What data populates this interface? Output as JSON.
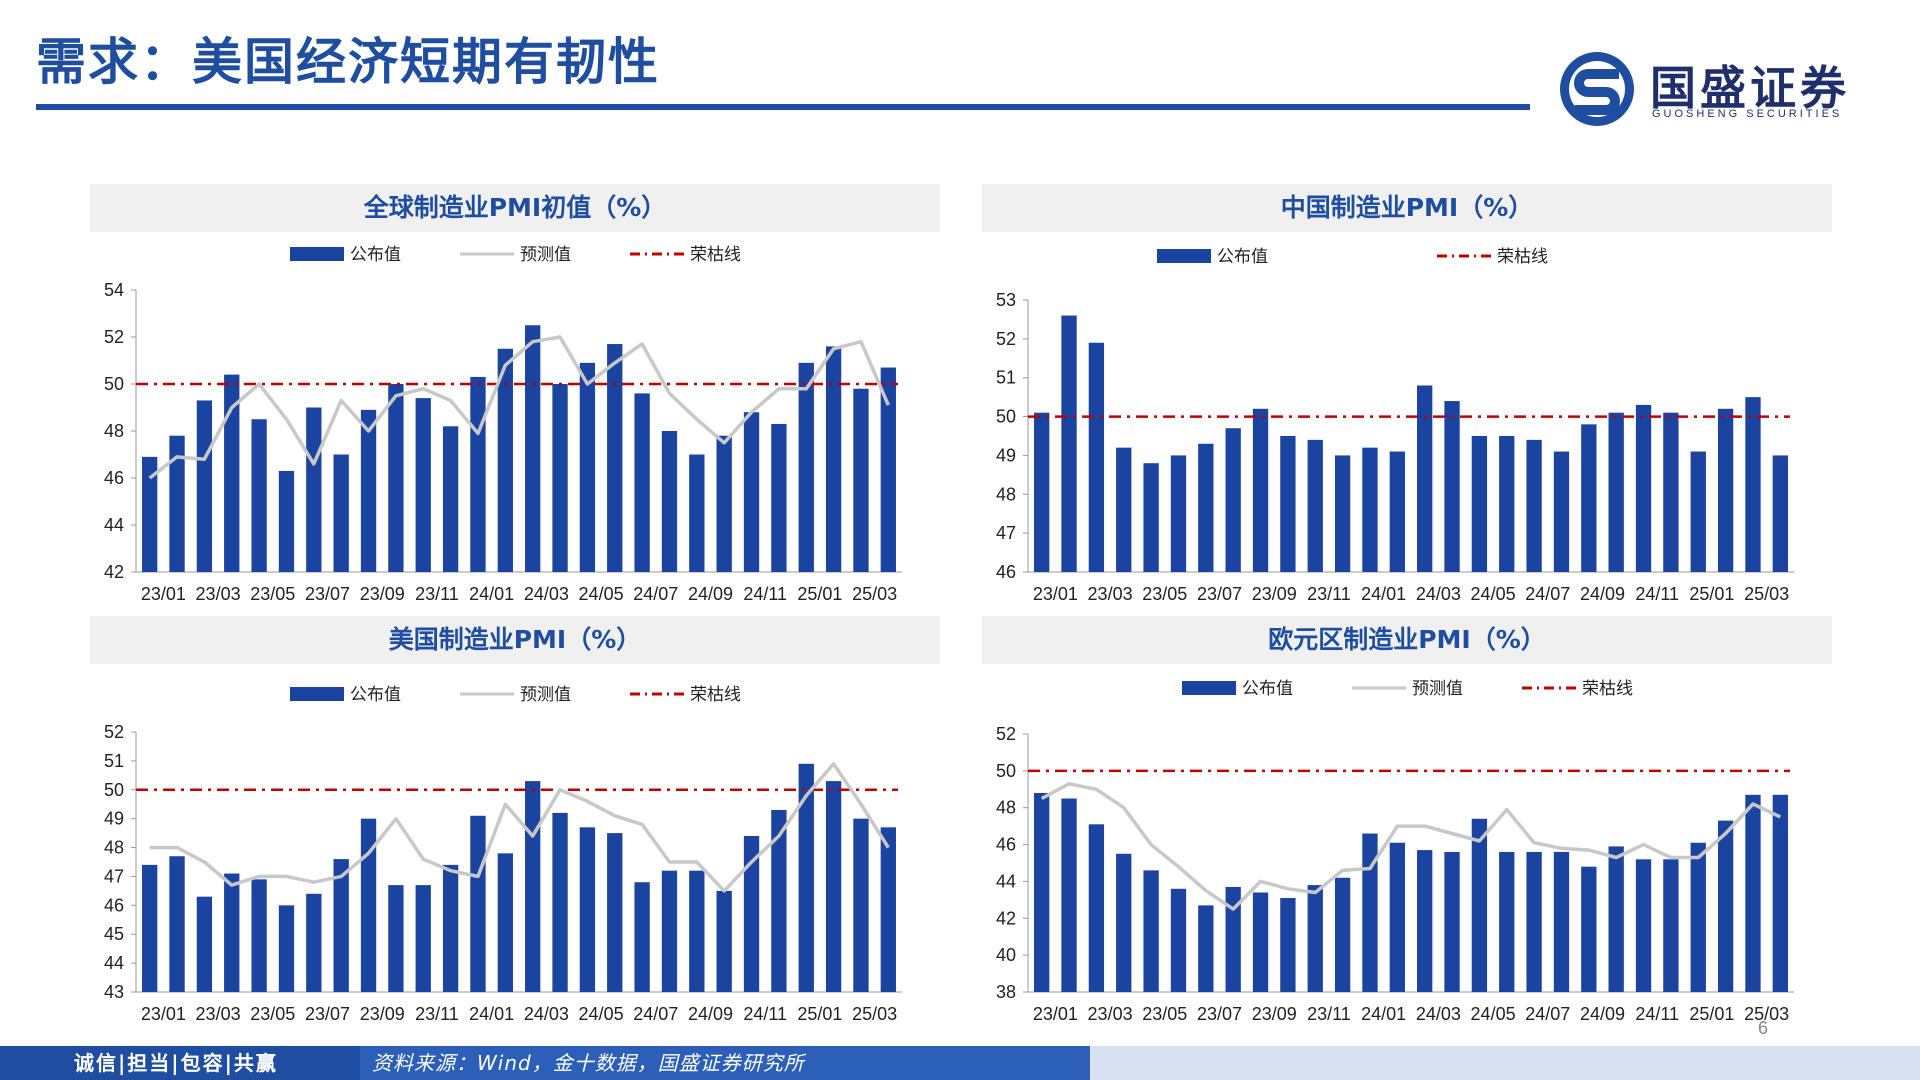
{
  "page": {
    "title": "需求：美国经济短期有韧性",
    "page_number": "6",
    "footer_left": "诚信|担当|包容|共赢",
    "footer_source": "资料来源：Wind，金十数据，国盛证券研究所"
  },
  "logo": {
    "cn": "国盛证券",
    "en": "GUOSHENG SECURITIES",
    "brand_color": "#1f4ea1"
  },
  "colors": {
    "bar": "#1a44a0",
    "forecast": "#c8c8c8",
    "threshold": "#c00000",
    "heading": "#1f4ea1"
  },
  "legend": {
    "published": "公布值",
    "forecast": "预测值",
    "threshold": "荣枯线"
  },
  "chart_data": [
    {
      "id": "global",
      "type": "bar",
      "title": "全球制造业PMI初值（%）",
      "ylim": [
        42,
        54
      ],
      "yticks": [
        42,
        44,
        46,
        48,
        50,
        52,
        54
      ],
      "xtick_labels": [
        "23/01",
        "23/03",
        "23/05",
        "23/07",
        "23/09",
        "23/11",
        "24/01",
        "24/03",
        "24/05",
        "24/07",
        "24/09",
        "24/11",
        "25/01",
        "25/03"
      ],
      "threshold": 50,
      "series": [
        {
          "name": "公布值",
          "type": "bar",
          "values": [
            46.9,
            47.8,
            49.3,
            50.4,
            48.5,
            46.3,
            49.0,
            47.0,
            48.9,
            50.0,
            49.4,
            48.2,
            50.3,
            51.5,
            52.5,
            50.0,
            50.9,
            51.7,
            49.6,
            48.0,
            47.0,
            47.8,
            48.8,
            48.3,
            50.9,
            51.6,
            49.8,
            50.7
          ]
        },
        {
          "name": "预测值",
          "type": "line",
          "values": [
            46.0,
            46.9,
            46.8,
            49.0,
            50.0,
            48.5,
            46.6,
            49.3,
            48.0,
            49.5,
            49.8,
            49.3,
            47.9,
            50.8,
            51.8,
            52.0,
            50.0,
            50.9,
            51.7,
            49.6,
            48.5,
            47.5,
            48.8,
            49.8,
            49.8,
            51.5,
            51.8,
            49.1
          ]
        }
      ]
    },
    {
      "id": "china",
      "type": "bar",
      "title": "中国制造业PMI（%）",
      "ylim": [
        46,
        53
      ],
      "yticks": [
        46,
        47,
        48,
        49,
        50,
        51,
        52,
        53
      ],
      "xtick_labels": [
        "23/01",
        "23/03",
        "23/05",
        "23/07",
        "23/09",
        "23/11",
        "24/01",
        "24/03",
        "24/05",
        "24/07",
        "24/09",
        "24/11",
        "25/01",
        "25/03"
      ],
      "threshold": 50,
      "series": [
        {
          "name": "公布值",
          "type": "bar",
          "values": [
            50.1,
            52.6,
            51.9,
            49.2,
            48.8,
            49.0,
            49.3,
            49.7,
            50.2,
            49.5,
            49.4,
            49.0,
            49.2,
            49.1,
            50.8,
            50.4,
            49.5,
            49.5,
            49.4,
            49.1,
            49.8,
            50.1,
            50.3,
            50.1,
            49.1,
            50.2,
            50.5,
            49.0
          ]
        }
      ]
    },
    {
      "id": "us",
      "type": "bar",
      "title": "美国制造业PMI（%）",
      "ylim": [
        43,
        52
      ],
      "yticks": [
        43,
        44,
        45,
        46,
        47,
        48,
        49,
        50,
        51,
        52
      ],
      "xtick_labels": [
        "23/01",
        "23/03",
        "23/05",
        "23/07",
        "23/09",
        "23/11",
        "24/01",
        "24/03",
        "24/05",
        "24/07",
        "24/09",
        "24/11",
        "25/01",
        "25/03"
      ],
      "threshold": 50,
      "series": [
        {
          "name": "公布值",
          "type": "bar",
          "values": [
            47.4,
            47.7,
            46.3,
            47.1,
            46.9,
            46.0,
            46.4,
            47.6,
            49.0,
            46.7,
            46.7,
            47.4,
            49.1,
            47.8,
            50.3,
            49.2,
            48.7,
            48.5,
            46.8,
            47.2,
            47.2,
            46.5,
            48.4,
            49.3,
            50.9,
            50.3,
            49.0,
            48.7
          ]
        },
        {
          "name": "预测值",
          "type": "line",
          "values": [
            48.0,
            48.0,
            47.5,
            46.7,
            47.0,
            47.0,
            46.8,
            47.0,
            47.8,
            49.0,
            47.6,
            47.2,
            47.0,
            49.5,
            48.4,
            50.0,
            49.6,
            49.1,
            48.8,
            47.5,
            47.5,
            46.5,
            47.5,
            48.4,
            49.8,
            50.9,
            49.5,
            48.0
          ]
        }
      ]
    },
    {
      "id": "eurozone",
      "type": "bar",
      "title": "欧元区制造业PMI（%）",
      "ylim": [
        38,
        52
      ],
      "yticks": [
        38,
        40,
        42,
        44,
        46,
        48,
        50,
        52
      ],
      "xtick_labels": [
        "23/01",
        "23/03",
        "23/05",
        "23/07",
        "23/09",
        "23/11",
        "24/01",
        "24/03",
        "24/05",
        "24/07",
        "24/09",
        "24/11",
        "25/01",
        "25/03"
      ],
      "threshold": 50,
      "series": [
        {
          "name": "公布值",
          "type": "bar",
          "values": [
            48.8,
            48.5,
            47.1,
            45.5,
            44.6,
            43.6,
            42.7,
            43.7,
            43.4,
            43.1,
            43.8,
            44.2,
            46.6,
            46.1,
            45.7,
            45.6,
            47.4,
            45.6,
            45.6,
            45.6,
            44.8,
            45.9,
            45.2,
            45.2,
            46.1,
            47.3,
            48.7,
            48.7
          ]
        },
        {
          "name": "预测值",
          "type": "line",
          "values": [
            48.5,
            49.3,
            49.0,
            48.0,
            46.0,
            44.8,
            43.5,
            42.5,
            44.0,
            43.6,
            43.4,
            44.6,
            44.7,
            47.0,
            47.0,
            46.6,
            46.2,
            47.9,
            46.1,
            45.8,
            45.7,
            45.3,
            46.0,
            45.3,
            45.3,
            46.6,
            48.2,
            47.5
          ]
        }
      ]
    }
  ]
}
